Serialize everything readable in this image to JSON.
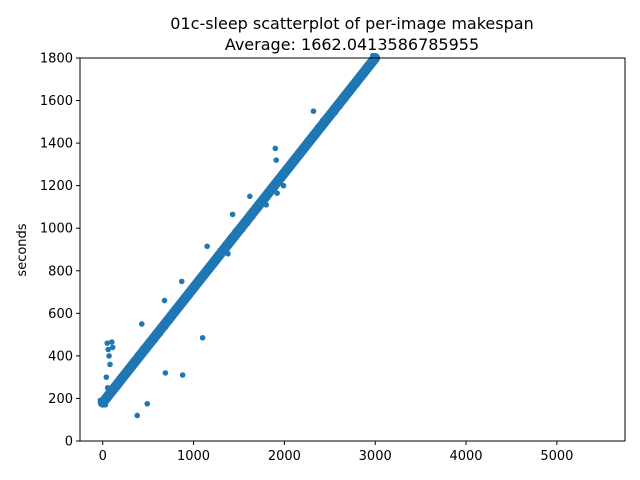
{
  "chart_data": {
    "type": "scatter",
    "title": "01c-sleep scatterplot of per-image makespan",
    "subtitle": "Average: 1662.0413586785955",
    "xlabel": "",
    "ylabel": "seconds",
    "xlim": [
      -250,
      5750
    ],
    "ylim": [
      0,
      1800
    ],
    "xticks": [
      0,
      1000,
      2000,
      3000,
      4000,
      5000
    ],
    "yticks": [
      0,
      200,
      400,
      600,
      800,
      1000,
      1200,
      1400,
      1600,
      1800
    ],
    "grid": false,
    "legend": "none",
    "marker_color": "#1f77b4",
    "main_trend": {
      "description": "dense band of points",
      "from": [
        0,
        180
      ],
      "to": [
        3000,
        1800
      ]
    },
    "points": [
      {
        "x": 50,
        "y": 460
      },
      {
        "x": 60,
        "y": 430
      },
      {
        "x": 70,
        "y": 400
      },
      {
        "x": 80,
        "y": 360
      },
      {
        "x": 100,
        "y": 465
      },
      {
        "x": 110,
        "y": 440
      },
      {
        "x": 40,
        "y": 300
      },
      {
        "x": 55,
        "y": 250
      },
      {
        "x": 30,
        "y": 170
      },
      {
        "x": 380,
        "y": 120
      },
      {
        "x": 490,
        "y": 175
      },
      {
        "x": 690,
        "y": 320
      },
      {
        "x": 880,
        "y": 310
      },
      {
        "x": 1100,
        "y": 485
      },
      {
        "x": 430,
        "y": 550
      },
      {
        "x": 680,
        "y": 660
      },
      {
        "x": 870,
        "y": 750
      },
      {
        "x": 1150,
        "y": 915
      },
      {
        "x": 1380,
        "y": 880
      },
      {
        "x": 1430,
        "y": 1065
      },
      {
        "x": 1620,
        "y": 1150
      },
      {
        "x": 1800,
        "y": 1110
      },
      {
        "x": 1900,
        "y": 1375
      },
      {
        "x": 1910,
        "y": 1320
      },
      {
        "x": 1920,
        "y": 1165
      },
      {
        "x": 1990,
        "y": 1200
      },
      {
        "x": 2320,
        "y": 1550
      }
    ]
  }
}
